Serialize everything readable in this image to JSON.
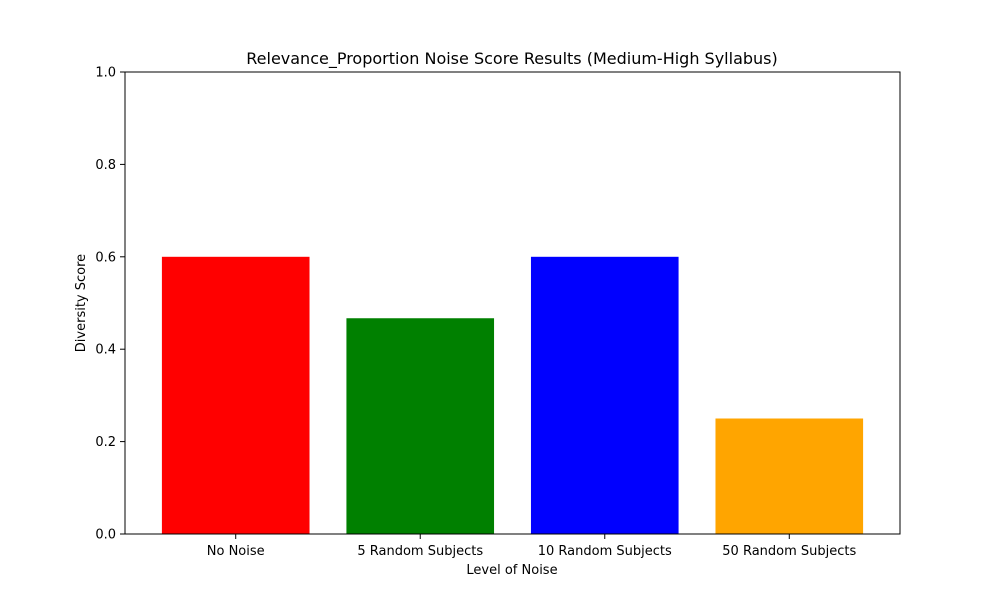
{
  "chart_data": {
    "type": "bar",
    "title": "Relevance_Proportion Noise Score Results (Medium-High Syllabus)",
    "xlabel": "Level of Noise",
    "ylabel": "Diversity Score",
    "categories": [
      "No Noise",
      "5 Random Subjects",
      "10 Random Subjects",
      "50 Random Subjects"
    ],
    "values": [
      0.6,
      0.467,
      0.6,
      0.25
    ],
    "colors": [
      "#ff0000",
      "#008000",
      "#0000ff",
      "#ffa500"
    ],
    "ylim": [
      0,
      1.0
    ],
    "yticks": [
      "0.0",
      "0.2",
      "0.4",
      "0.6",
      "0.8",
      "1.0"
    ],
    "grid": false,
    "legend": false
  }
}
